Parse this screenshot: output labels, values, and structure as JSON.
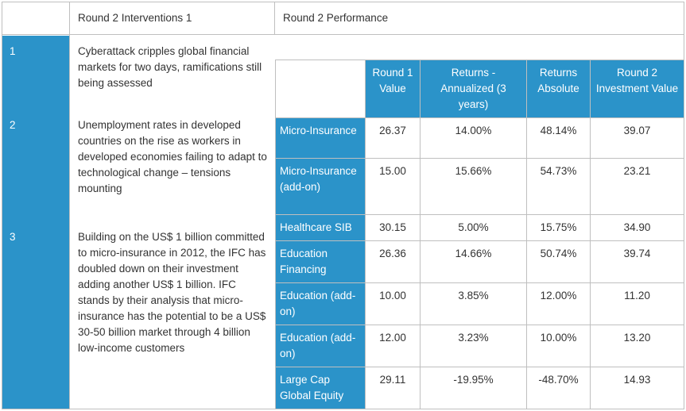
{
  "header": {
    "col1": "",
    "col2": "Round 2 Interventions 1",
    "col3": "Round 2 Performance"
  },
  "rows": [
    {
      "num": "1",
      "text": "Cyberattack cripples global financial markets for two days, ramifications still being assessed"
    },
    {
      "num": "2",
      "text": "Unemployment rates in developed countries on the rise as workers in developed economies failing to adapt to technological change – tensions mounting"
    },
    {
      "num": "3",
      "text": "Building on the US$ 1 billion committed to micro-insurance in 2012, the IFC has doubled down on their investment adding another US$ 1 billion. IFC stands by their analysis that micro-insurance has the potential to be a US$ 30-50 billion market through 4 billion low-income customers"
    }
  ],
  "performance": {
    "headers": [
      "",
      "Round 1 Value",
      "Returns - Annualized (3 years)",
      "Returns Absolute",
      "Round 2 Investment Value"
    ],
    "rows": [
      {
        "label": "Micro-Insurance",
        "r1": "26.37",
        "annual": "14.00%",
        "absolute": "48.14%",
        "r2": "39.07"
      },
      {
        "label": "Micro-Insurance (add-on)",
        "r1": "15.00",
        "annual": "15.66%",
        "absolute": "54.73%",
        "r2": "23.21"
      },
      {
        "label": "Healthcare SIB",
        "r1": "30.15",
        "annual": "5.00%",
        "absolute": "15.75%",
        "r2": "34.90"
      },
      {
        "label": "Education Financing",
        "r1": "26.36",
        "annual": "14.66%",
        "absolute": "50.74%",
        "r2": "39.74"
      },
      {
        "label": "Education (add-on)",
        "r1": "10.00",
        "annual": "3.85%",
        "absolute": "12.00%",
        "r2": "11.20"
      },
      {
        "label": "Education (add-on)",
        "r1": "12.00",
        "annual": "3.23%",
        "absolute": "10.00%",
        "r2": "13.20"
      },
      {
        "label": "Large Cap Global Equity",
        "r1": "29.11",
        "annual": "-19.95%",
        "absolute": "-48.70%",
        "r2": "14.93"
      }
    ]
  },
  "colors": {
    "accent": "#2b93c9",
    "border": "#bfbfbf",
    "text": "#333333"
  }
}
